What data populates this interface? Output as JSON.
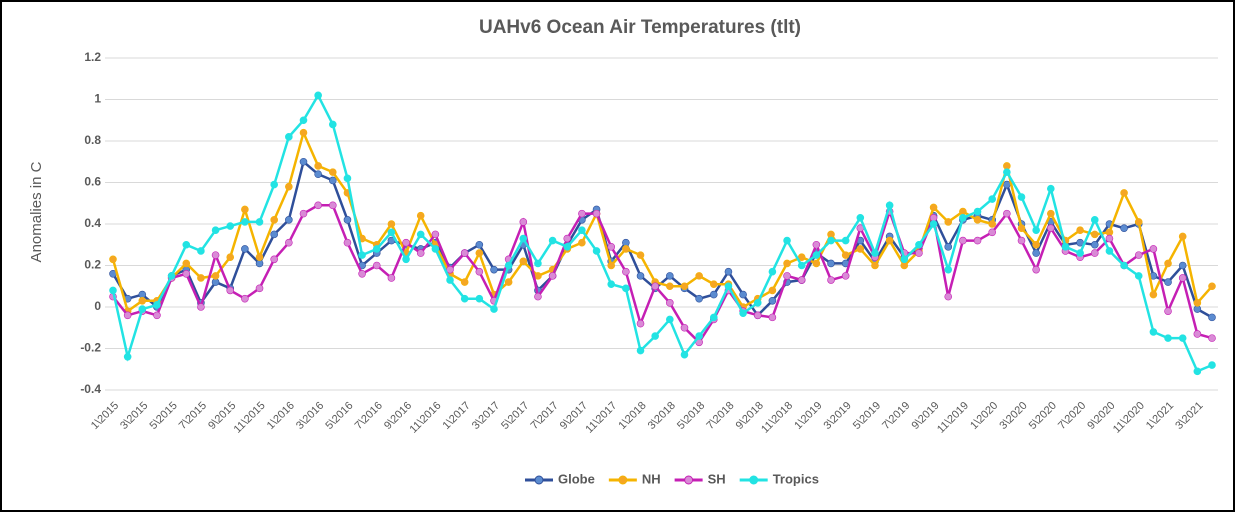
{
  "chart_data": {
    "type": "line",
    "title": "UAHv6 Ocean Air Temperatures (tlt)",
    "y_label": "Anomalies in C",
    "categories": [
      "1\\2015",
      null,
      "3\\2015",
      null,
      "5\\2015",
      null,
      "7\\2015",
      null,
      "9\\2015",
      null,
      "11\\2015",
      null,
      "1\\2016",
      null,
      "3\\2016",
      null,
      "5\\2016",
      null,
      "7\\2016",
      null,
      "9\\2016",
      null,
      "11\\2016",
      null,
      "1\\2017",
      null,
      "3\\2017",
      null,
      "5\\2017",
      null,
      "7\\2017",
      null,
      "9\\2017",
      null,
      "11\\2017",
      null,
      "1\\2018",
      null,
      "3\\2018",
      null,
      "5\\2018",
      null,
      "7\\2018",
      null,
      "9\\2018",
      null,
      "11\\2018",
      null,
      "1\\2019",
      null,
      "3\\2019",
      null,
      "5\\2019",
      null,
      "7\\2019",
      null,
      "9\\2019",
      null,
      "11\\2019",
      null,
      "1\\2020",
      null,
      "3\\2020",
      null,
      "5\\2020",
      null,
      "7\\2020",
      null,
      "9\\2020",
      null,
      "11\\2020",
      null,
      "1\\2021",
      null,
      "3\\2021",
      null
    ],
    "series": [
      {
        "name": "Globe",
        "color": "#2f4f9a",
        "marker": "#5b8bd0",
        "values": [
          0.16,
          0.04,
          0.06,
          0.0,
          0.15,
          0.18,
          0.02,
          0.12,
          0.09,
          0.28,
          0.21,
          0.35,
          0.42,
          0.7,
          0.64,
          0.61,
          0.42,
          0.2,
          0.26,
          0.32,
          0.3,
          0.28,
          0.31,
          0.19,
          0.26,
          0.3,
          0.18,
          0.18,
          0.3,
          0.08,
          0.15,
          0.3,
          0.42,
          0.47,
          0.22,
          0.31,
          0.15,
          0.09,
          0.15,
          0.09,
          0.04,
          0.06,
          0.17,
          0.06,
          -0.04,
          0.03,
          0.12,
          0.13,
          0.26,
          0.21,
          0.21,
          0.32,
          0.22,
          0.34,
          0.24,
          0.28,
          0.44,
          0.29,
          0.42,
          0.44,
          0.42,
          0.59,
          0.4,
          0.26,
          0.41,
          0.3,
          0.31,
          0.3,
          0.4,
          0.38,
          0.4,
          0.15,
          0.12,
          0.2,
          -0.01,
          -0.05
        ]
      },
      {
        "name": "NH",
        "color": "#f5b400",
        "marker": "#f5a623",
        "values": [
          0.23,
          -0.02,
          0.03,
          0.03,
          0.14,
          0.21,
          0.14,
          0.15,
          0.24,
          0.47,
          0.24,
          0.42,
          0.58,
          0.84,
          0.68,
          0.65,
          0.55,
          0.33,
          0.3,
          0.4,
          0.26,
          0.44,
          0.3,
          0.16,
          0.12,
          0.26,
          0.06,
          0.12,
          0.22,
          0.15,
          0.18,
          0.28,
          0.31,
          0.45,
          0.2,
          0.28,
          0.25,
          0.12,
          0.1,
          0.1,
          0.15,
          0.11,
          0.11,
          0.0,
          0.04,
          0.08,
          0.21,
          0.24,
          0.21,
          0.35,
          0.25,
          0.28,
          0.2,
          0.32,
          0.2,
          0.27,
          0.48,
          0.41,
          0.46,
          0.42,
          0.4,
          0.68,
          0.38,
          0.3,
          0.45,
          0.32,
          0.37,
          0.35,
          0.36,
          0.55,
          0.41,
          0.06,
          0.21,
          0.34,
          0.02,
          0.1
        ]
      },
      {
        "name": "SH",
        "color": "#c51fb4",
        "marker": "#d98ad6",
        "values": [
          0.05,
          -0.04,
          -0.02,
          -0.04,
          0.14,
          0.16,
          0.0,
          0.25,
          0.08,
          0.04,
          0.09,
          0.23,
          0.31,
          0.45,
          0.49,
          0.49,
          0.31,
          0.16,
          0.2,
          0.14,
          0.31,
          0.26,
          0.35,
          0.18,
          0.26,
          0.17,
          0.03,
          0.23,
          0.41,
          0.05,
          0.15,
          0.33,
          0.45,
          0.45,
          0.29,
          0.17,
          -0.08,
          0.1,
          0.02,
          -0.1,
          -0.17,
          -0.06,
          0.08,
          -0.02,
          -0.04,
          -0.05,
          0.15,
          0.13,
          0.3,
          0.13,
          0.15,
          0.38,
          0.24,
          0.46,
          0.26,
          0.26,
          0.43,
          0.05,
          0.32,
          0.32,
          0.36,
          0.45,
          0.32,
          0.18,
          0.38,
          0.27,
          0.24,
          0.26,
          0.33,
          0.2,
          0.25,
          0.28,
          -0.02,
          0.14,
          -0.13,
          -0.15
        ]
      },
      {
        "name": "Tropics",
        "color": "#22e3e3",
        "marker": "#22e3e3",
        "values": [
          0.08,
          -0.24,
          -0.01,
          0.01,
          0.15,
          0.3,
          0.27,
          0.37,
          0.39,
          0.41,
          0.41,
          0.59,
          0.82,
          0.9,
          1.02,
          0.88,
          0.62,
          0.25,
          0.28,
          0.36,
          0.23,
          0.35,
          0.28,
          0.13,
          0.04,
          0.04,
          -0.01,
          0.2,
          0.33,
          0.21,
          0.32,
          0.29,
          0.37,
          0.27,
          0.11,
          0.09,
          -0.21,
          -0.14,
          -0.06,
          -0.23,
          -0.14,
          -0.05,
          0.1,
          -0.03,
          0.02,
          0.17,
          0.32,
          0.2,
          0.25,
          0.32,
          0.32,
          0.43,
          0.26,
          0.49,
          0.23,
          0.3,
          0.4,
          0.18,
          0.43,
          0.46,
          0.52,
          0.65,
          0.53,
          0.37,
          0.57,
          0.29,
          0.26,
          0.42,
          0.27,
          0.2,
          0.15,
          -0.12,
          -0.15,
          -0.15,
          -0.31,
          -0.28
        ]
      }
    ],
    "ylim": [
      -0.4,
      1.2
    ],
    "yticks": [
      -0.4,
      -0.2,
      0,
      0.2,
      0.4,
      0.6,
      0.8,
      1,
      1.2
    ],
    "grid": true,
    "legend": "bottom"
  }
}
